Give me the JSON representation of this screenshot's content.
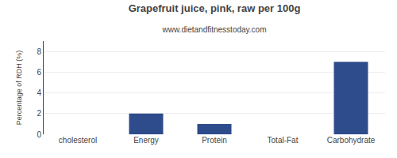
{
  "chart_data": {
    "type": "bar",
    "title": "Grapefruit juice, pink, raw per 100g",
    "subtitle": "www.dietandfitnesstoday.com",
    "categories": [
      "cholesterol",
      "Energy",
      "Protein",
      "Total-Fat",
      "Carbohydrate"
    ],
    "values": [
      0,
      2,
      1,
      0,
      7
    ],
    "color": "#2e4b8c",
    "ylabel": "Percentage of RDH (%)",
    "ylim": [
      0,
      9
    ],
    "yticks": [
      0,
      2,
      4,
      6,
      8
    ],
    "grid": true
  }
}
